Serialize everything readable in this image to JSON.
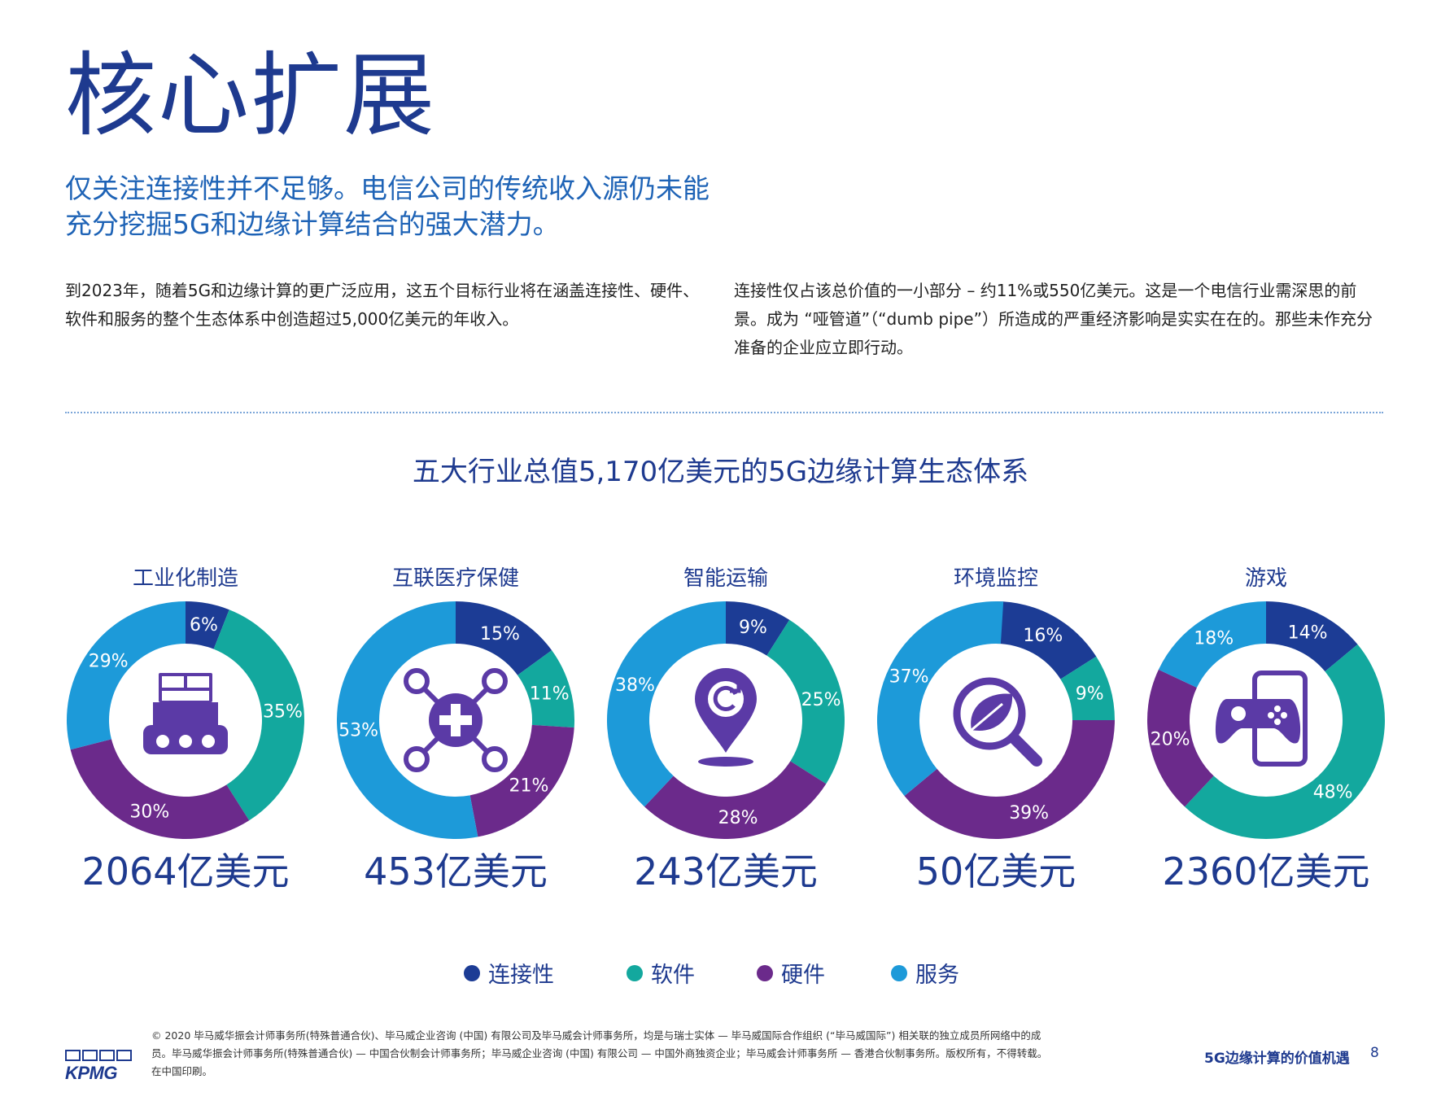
{
  "page": {
    "title": "核心扩展",
    "subtitle": "仅关注连接性并不足够。电信公司的传统收入源仍未能充分挖掘5G和边缘计算结合的强大潜力。",
    "paragraph_left": "到2023年，随着5G和边缘计算的更广泛应用，这五个目标行业将在涵盖连接性、硬件、软件和服务的整个生态体系中创造超过5,000亿美元的年收入。",
    "paragraph_right": "连接性仅占该总价值的一小部分 – 约11%或550亿美元。这是一个电信行业需深思的前景。成为 “哑管道”（“dumb pipe”）所造成的严重经济影响是实实在在的。那些未作充分准备的企业应立即行动。"
  },
  "chart_data": {
    "type": "pie",
    "title": "五大行业总值5,170亿美元的5G边缘计算生态体系",
    "legend": [
      "连接性",
      "软件",
      "硬件",
      "服务"
    ],
    "legend_placement": "bottom",
    "colors": {
      "连接性": "#1c3c95",
      "软件": "#13a89e",
      "硬件": "#6b2a8b",
      "服务": "#1d9ad9"
    },
    "charts": [
      {
        "name": "工业化制造",
        "total": "2064亿美元",
        "icon": "factory-conveyor-icon",
        "values": {
          "连接性": 6,
          "软件": 35,
          "硬件": 30,
          "服务": 29
        },
        "labels": [
          "6%",
          "35%",
          "30%",
          "29%"
        ]
      },
      {
        "name": "互联医疗保健",
        "total": "453亿美元",
        "icon": "medical-network-icon",
        "values": {
          "连接性": 15,
          "软件": 11,
          "硬件": 21,
          "服务": 53
        },
        "labels": [
          "15%",
          "11%",
          "21%",
          "53%"
        ]
      },
      {
        "name": "智能运输",
        "total": "243亿美元",
        "icon": "location-pin-icon",
        "values": {
          "连接性": 9,
          "软件": 25,
          "硬件": 28,
          "服务": 38
        },
        "labels": [
          "9%",
          "25%",
          "28%",
          "38%"
        ]
      },
      {
        "name": "环境监控",
        "total": "50亿美元",
        "icon": "leaf-magnifier-icon",
        "values": {
          "连接性": 16,
          "软件": 9,
          "硬件": 39,
          "服务": 37
        },
        "labels": [
          "16%",
          "9%",
          "39%",
          "37%"
        ]
      },
      {
        "name": "游戏",
        "total": "2360亿美元",
        "icon": "gamepad-icon",
        "values": {
          "连接性": 14,
          "软件": 48,
          "硬件": 20,
          "服务": 18
        },
        "labels": [
          "14%",
          "48%",
          "20%",
          "18%"
        ]
      }
    ]
  },
  "footer": {
    "logo": "KPMG",
    "copyright": "© 2020 毕马威华振会计师事务所(特殊普通合伙)、毕马威企业咨询 (中国) 有限公司及毕马威会计师事务所，均是与瑞士实体 — 毕马威国际合作组织 (“毕马威国际”) 相关联的独立成员所网络中的成员。毕马威华振会计师事务所(特殊普通合伙) — 中国合伙制会计师事务所；毕马威企业咨询 (中国) 有限公司 — 中国外商独资企业；毕马威会计师事务所 — 香港合伙制事务所。版权所有，不得转载。在中国印刷。",
    "report_name": "5G边缘计算的价值机遇",
    "page_number": "8"
  },
  "theme": {
    "title_color": "#1e3a8f",
    "subtitle_color": "#1e63b6",
    "icon_color": "#5b3aa6"
  }
}
